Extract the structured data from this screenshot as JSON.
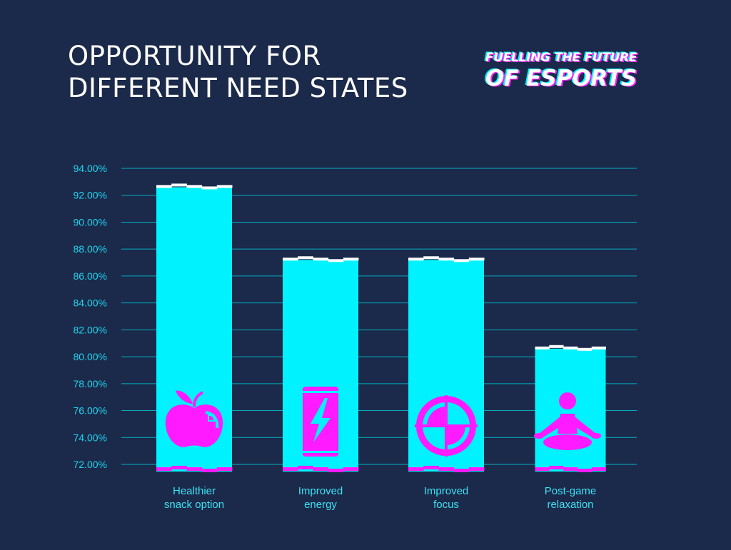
{
  "title_lines": [
    "OPPORTUNITY FOR",
    "DIFFERENT NEED STATES"
  ],
  "brand_lines": [
    "FUELLING THE FUTURE",
    "OF ESPORTS"
  ],
  "colors": {
    "background": "#1b2a4a",
    "bar": "#00f2ff",
    "accent": "#ff1aff",
    "grid": "#00c4d8",
    "tick_text": "#1fd4f0",
    "label_text": "#3ce0f4"
  },
  "chart_data": {
    "type": "bar",
    "categories": [
      [
        "Healthier",
        "snack option"
      ],
      [
        "Improved",
        "energy"
      ],
      [
        "Improved",
        "focus"
      ],
      [
        "Post-game",
        "relaxation"
      ]
    ],
    "values": [
      92.6,
      87.2,
      87.2,
      80.6
    ],
    "ylim": [
      72,
      94
    ],
    "yticks": [
      "94.00%",
      "92.00%",
      "90.00%",
      "88.00%",
      "86.00%",
      "84.00%",
      "82.00%",
      "80.00%",
      "78.00%",
      "76.00%",
      "74.00%",
      "72.00%"
    ],
    "icons": [
      "apple-icon",
      "energy-can-icon",
      "target-icon",
      "meditation-icon"
    ],
    "grid": true
  }
}
